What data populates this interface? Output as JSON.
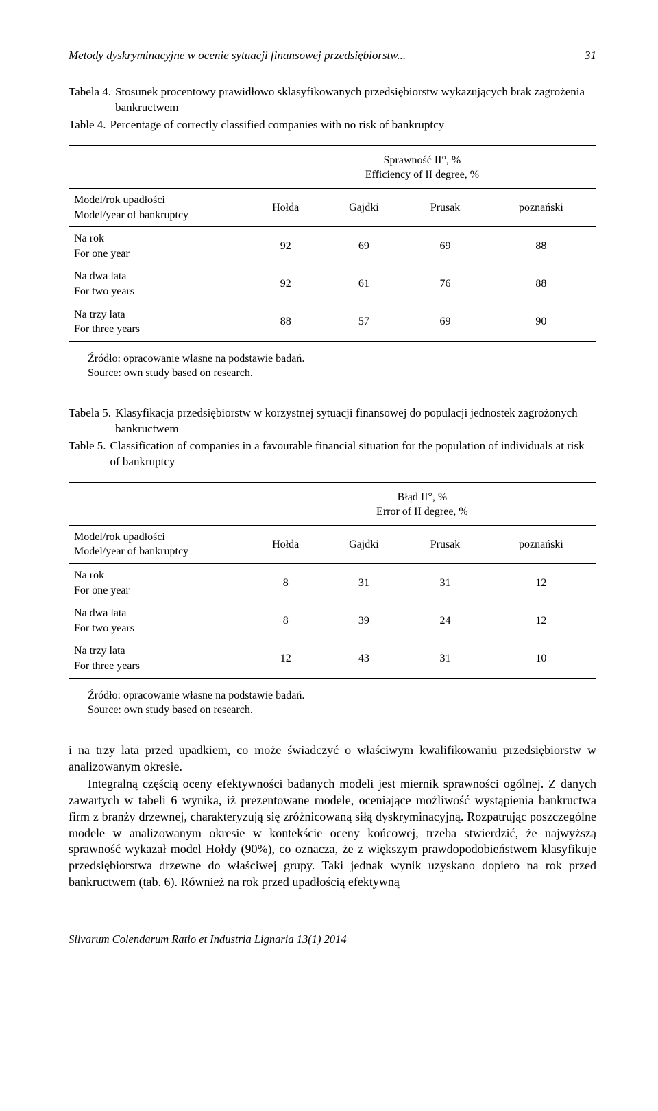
{
  "header": {
    "running_title": "Metody dyskryminacyjne w ocenie sytuacji finansowej przedsiębiorstw...",
    "page_number": "31"
  },
  "table4": {
    "caption_pl_label": "Tabela 4.",
    "caption_pl_text": "Stosunek procentowy prawidłowo sklasyfikowanych przedsiębiorstw wykazujących brak zagrożenia bankructwem",
    "caption_en_label": "Table 4.",
    "caption_en_text": "Percentage of correctly classified companies with no risk of bankruptcy",
    "super_header_pl": "Sprawność II°, %",
    "super_header_en": "Efficiency of II degree, %",
    "col0_pl": "Model/rok upadłości",
    "col0_en": "Model/year of bankruptcy",
    "cols": [
      "Hołda",
      "Gajdki",
      "Prusak",
      "poznański"
    ],
    "rows": [
      {
        "label_pl": "Na rok",
        "label_en": "For one year",
        "v": [
          92,
          69,
          69,
          88
        ]
      },
      {
        "label_pl": "Na dwa lata",
        "label_en": "For two years",
        "v": [
          92,
          61,
          76,
          88
        ]
      },
      {
        "label_pl": "Na trzy lata",
        "label_en": "For three years",
        "v": [
          88,
          57,
          69,
          90
        ]
      }
    ]
  },
  "table5": {
    "caption_pl_label": "Tabela 5.",
    "caption_pl_text": "Klasyfikacja przedsiębiorstw w korzystnej sytuacji finansowej do populacji jednostek zagrożonych bankructwem",
    "caption_en_label": "Table 5.",
    "caption_en_text": "Classification of companies in a favourable financial situation for the population of individuals at risk of bankruptcy",
    "super_header_pl": "Błąd II°, %",
    "super_header_en": "Error of II degree, %",
    "col0_pl": "Model/rok upadłości",
    "col0_en": "Model/year of bankruptcy",
    "cols": [
      "Hołda",
      "Gajdki",
      "Prusak",
      "poznański"
    ],
    "rows": [
      {
        "label_pl": "Na rok",
        "label_en": "For one year",
        "v": [
          8,
          31,
          31,
          12
        ]
      },
      {
        "label_pl": "Na dwa lata",
        "label_en": "For two years",
        "v": [
          8,
          39,
          24,
          12
        ]
      },
      {
        "label_pl": "Na trzy lata",
        "label_en": "For three years",
        "v": [
          12,
          43,
          31,
          10
        ]
      }
    ]
  },
  "source": {
    "pl": "Źródło: opracowanie własne na podstawie badań.",
    "en": "Source: own study based on research."
  },
  "body": {
    "p1": "i na trzy lata przed upadkiem, co może świadczyć o właściwym kwalifikowaniu przedsiębiorstw w analizowanym okresie.",
    "p2": "Integralną częścią oceny efektywności badanych modeli jest miernik sprawności ogólnej. Z danych zawartych w tabeli 6 wynika, iż prezentowane modele, oceniające możliwość wystąpienia bankructwa firm z branży drzewnej, charakteryzują się zróżnicowaną siłą dyskryminacyjną. Rozpatrując poszczególne modele w analizowanym okresie w kontekście oceny końcowej, trzeba stwierdzić, że najwyższą sprawność wykazał model Hołdy (90%), co oznacza, że z większym prawdopodobieństwem klasyfikuje przedsiębiorstwa drzewne do właściwej grupy. Taki jednak wynik uzyskano dopiero na rok przed bankructwem (tab. 6). Również na rok przed upadłością efektywną"
  },
  "footer": {
    "journal": "Silvarum Colendarum Ratio et Industria Lignaria 13(1) 2014"
  }
}
